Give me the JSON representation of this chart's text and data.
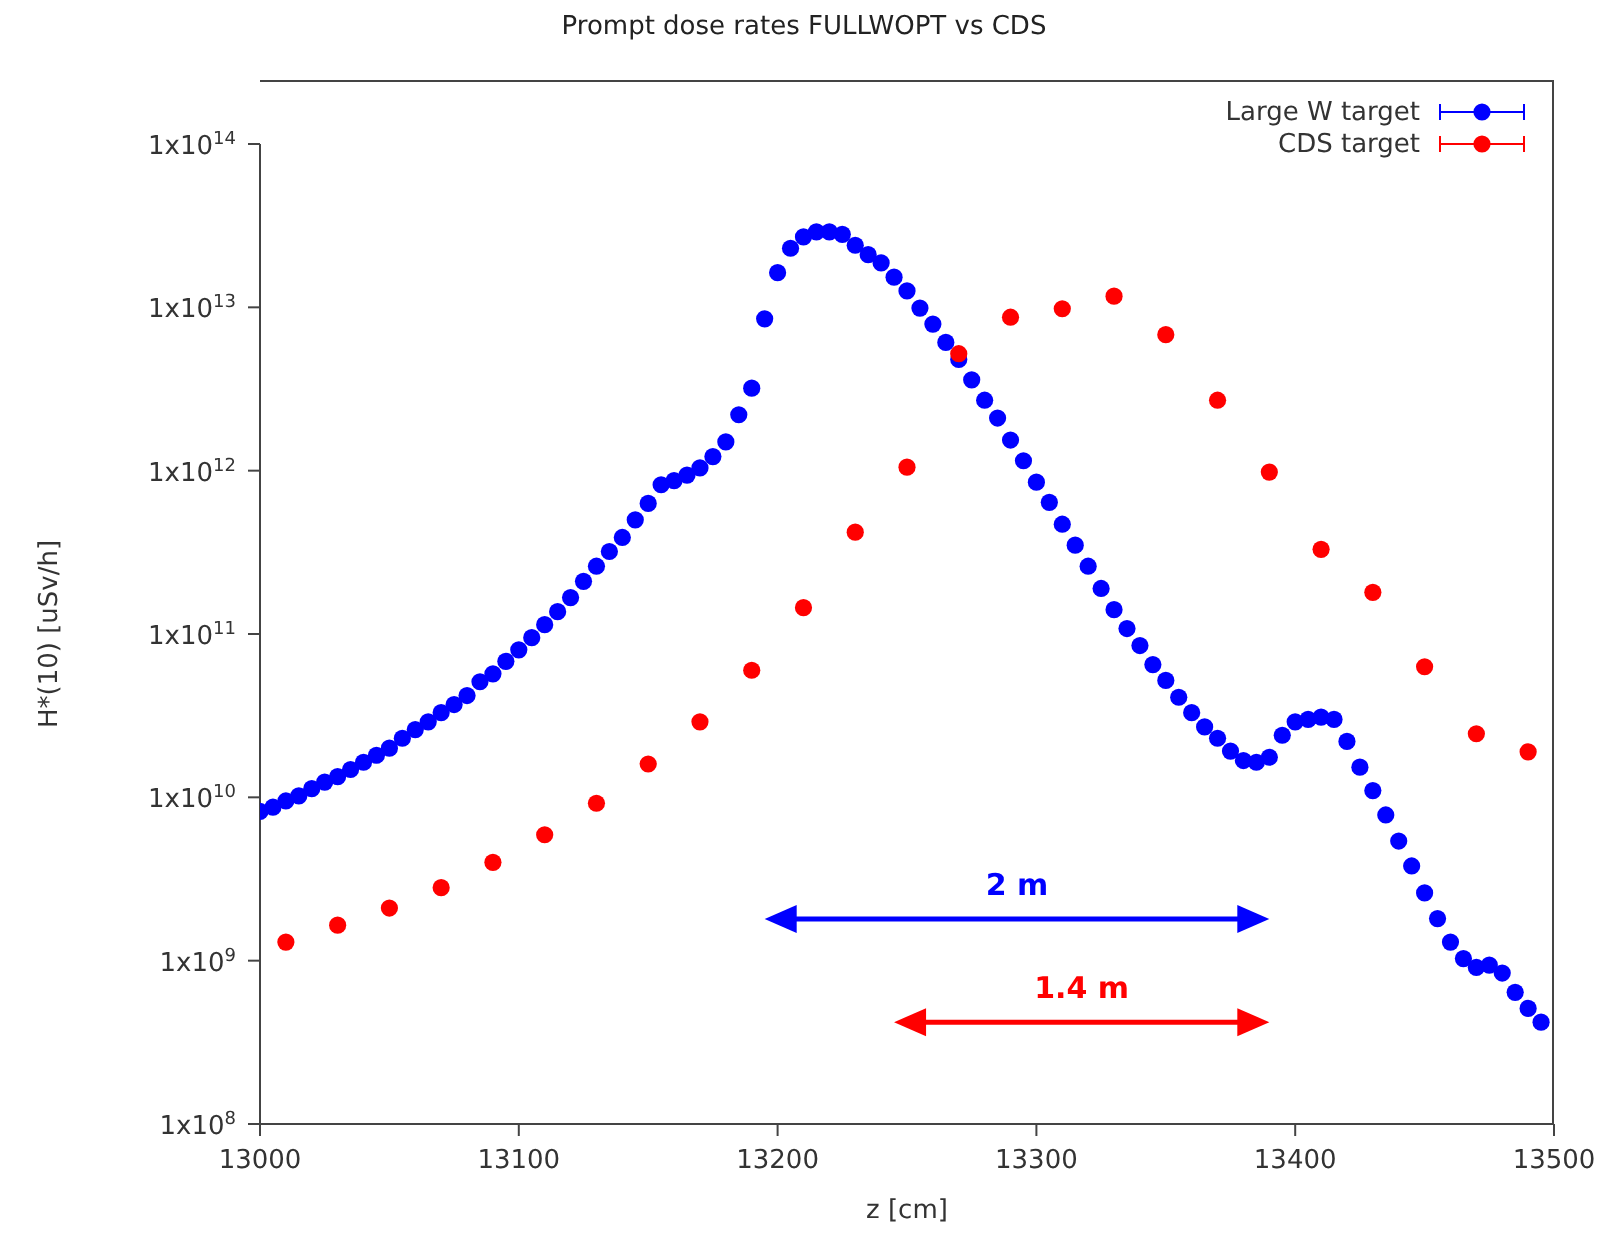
{
  "chart_data": {
    "type": "scatter",
    "title": "Prompt dose rates FULLWOPT vs CDS",
    "xlabel": "z [cm]",
    "ylabel": "H*(10) [uSv/h]",
    "xlim": [
      13000,
      13500
    ],
    "xticks": [
      13000,
      13100,
      13200,
      13300,
      13400,
      13500
    ],
    "ylim": [
      100000000.0,
      100000000000000.0
    ],
    "yticks": [
      {
        "value": 100000000.0,
        "label": "1x10$^{8}$"
      },
      {
        "value": 1000000000.0,
        "label": "1x10$^{9}$"
      },
      {
        "value": 10000000000.0,
        "label": "1x10$^{10}$"
      },
      {
        "value": 100000000000.0,
        "label": "1x10$^{11}$"
      },
      {
        "value": 1000000000000.0,
        "label": "1x10$^{12}$"
      },
      {
        "value": 10000000000000.0,
        "label": "1x10$^{13}$"
      },
      {
        "value": 100000000000000.0,
        "label": "1x10$^{14}$"
      }
    ],
    "log": "y",
    "legend": "top right",
    "marker": "circle",
    "series": [
      {
        "name": "Large W target",
        "color": "#0000ff",
        "x": [
          13000,
          13005,
          13010,
          13015,
          13020,
          13025,
          13030,
          13035,
          13040,
          13045,
          13050,
          13055,
          13060,
          13065,
          13070,
          13075,
          13080,
          13085,
          13090,
          13095,
          13100,
          13105,
          13110,
          13115,
          13120,
          13125,
          13130,
          13135,
          13140,
          13145,
          13150,
          13155,
          13160,
          13165,
          13170,
          13175,
          13180,
          13185,
          13190,
          13195,
          13200,
          13205,
          13210,
          13215,
          13220,
          13225,
          13230,
          13235,
          13240,
          13245,
          13250,
          13255,
          13260,
          13265,
          13270,
          13275,
          13280,
          13285,
          13290,
          13295,
          13300,
          13305,
          13310,
          13315,
          13320,
          13325,
          13330,
          13335,
          13340,
          13345,
          13350,
          13355,
          13360,
          13365,
          13370,
          13375,
          13380,
          13385,
          13390,
          13395,
          13400,
          13405,
          13410,
          13415,
          13420,
          13425,
          13430,
          13435,
          13440,
          13445,
          13450,
          13455,
          13460,
          13465,
          13470,
          13475,
          13480,
          13485,
          13490,
          13495
        ],
        "values": [
          8200000000.0,
          8700000000.0,
          9500000000.0,
          10200000000.0,
          11300000000.0,
          12400000000.0,
          13400000000.0,
          14800000000.0,
          16400000000.0,
          18100000000.0,
          20000000000.0,
          23000000000.0,
          26000000000.0,
          29000000000.0,
          33000000000.0,
          37000000000.0,
          42000000000.0,
          51000000000.0,
          57000000000.0,
          68000000000.0,
          80000000000.0,
          95000000000.0,
          114000000000.0,
          137000000000.0,
          167000000000.0,
          210000000000.0,
          260000000000.0,
          320000000000.0,
          390000000000.0,
          500000000000.0,
          630000000000.0,
          820000000000.0,
          870000000000.0,
          940000000000.0,
          1040000000000.0,
          1220000000000.0,
          1500000000000.0,
          2200000000000.0,
          3200000000000.0,
          8500000000000.0,
          16300000000000.0,
          23000000000000.0,
          27000000000000.0,
          29000000000000.0,
          29000000000000.0,
          28000000000000.0,
          24000000000000.0,
          21000000000000.0,
          18700000000000.0,
          15300000000000.0,
          12600000000000.0,
          9900000000000.0,
          7900000000000.0,
          6100000000000.0,
          4800000000000.0,
          3600000000000.0,
          2700000000000.0,
          2100000000000.0,
          1540000000000.0,
          1150000000000.0,
          850000000000.0,
          640000000000.0,
          470000000000.0,
          350000000000.0,
          260000000000.0,
          190000000000.0,
          141000000000.0,
          108000000000.0,
          85000000000.0,
          65000000000.0,
          52000000000.0,
          41000000000.0,
          33000000000.0,
          27000000000.0,
          23000000000.0,
          19200000000.0,
          16800000000.0,
          16400000000.0,
          17600000000.0,
          24000000000.0,
          29000000000.0,
          30000000000.0,
          31000000000.0,
          30000000000.0,
          22000000000.0,
          15300000000.0,
          11000000000.0,
          7800000000.0,
          5400000000.0,
          3800000000.0,
          2600000000.0,
          1810000000.0,
          1300000000.0,
          1030000000.0,
          910000000.0,
          940000000.0,
          840000000.0,
          640000000.0,
          510000000.0,
          420000000.0
        ]
      },
      {
        "name": "CDS target",
        "color": "#ff0000",
        "x": [
          13010,
          13030,
          13050,
          13070,
          13090,
          13110,
          13130,
          13150,
          13170,
          13190,
          13210,
          13230,
          13250,
          13270,
          13290,
          13310,
          13330,
          13350,
          13370,
          13390,
          13410,
          13430,
          13450,
          13470,
          13490
        ],
        "values": [
          1300000000.0,
          1650000000.0,
          2100000000.0,
          2800000000.0,
          4000000000.0,
          5900000000.0,
          9200000000.0,
          16000000000.0,
          29000000000.0,
          60000000000.0,
          145000000000.0,
          420000000000.0,
          1050000000000.0,
          5200000000000.0,
          8700000000000.0,
          9800000000000.0,
          11700000000000.0,
          6800000000000.0,
          2700000000000.0,
          980000000000.0,
          330000000000.0,
          180000000000.0,
          63000000000.0,
          24500000000.0,
          19000000000.0
        ]
      }
    ],
    "annotations": [
      "2 m",
      "1.4 m"
    ]
  }
}
